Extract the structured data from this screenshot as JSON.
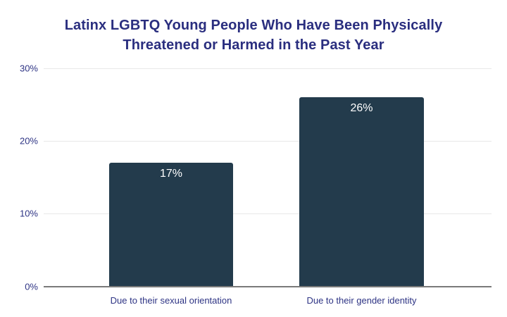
{
  "chart_data": {
    "type": "bar",
    "title": "Latinx LGBTQ Young People Who Have Been Physically Threatened or Harmed in the Past Year",
    "categories": [
      "Due to their sexual orientation",
      "Due to their gender identity"
    ],
    "values": [
      17,
      26
    ],
    "data_labels": [
      "17%",
      "26%"
    ],
    "xlabel": "",
    "ylabel": "",
    "ylim": [
      0,
      30
    ],
    "yticks": [
      0,
      10,
      20,
      30
    ],
    "ytick_labels": [
      "0%",
      "10%",
      "20%",
      "30%"
    ],
    "grid": "horizontal",
    "legend": "none",
    "colors": {
      "bar": "#233B4C",
      "title_text": "#2A2E7F",
      "axis_text": "#2E3484",
      "gridline": "#E8E8E8",
      "baseline": "#7A7A7A",
      "data_label_text": "#FFFFFF",
      "background": "#FFFFFF"
    }
  }
}
